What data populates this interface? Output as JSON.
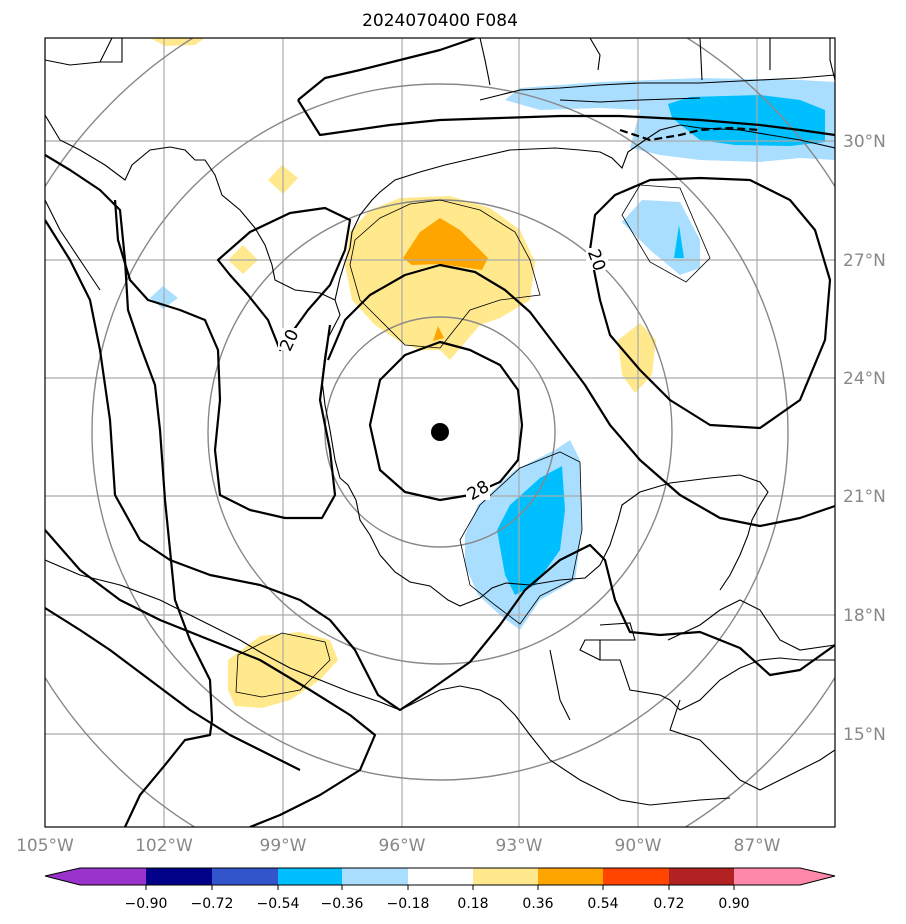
{
  "title": "2024070400 F084",
  "map": {
    "lon_range": [
      -105,
      -85
    ],
    "lat_range": [
      13,
      33
    ],
    "lon_ticks": [
      {
        "value": -105,
        "label": "105°W"
      },
      {
        "value": -102,
        "label": "102°W"
      },
      {
        "value": -99,
        "label": "99°W"
      },
      {
        "value": -96,
        "label": "96°W"
      },
      {
        "value": -93,
        "label": "93°W"
      },
      {
        "value": -90,
        "label": "90°W"
      },
      {
        "value": -87,
        "label": "87°W"
      }
    ],
    "lat_ticks": [
      {
        "value": 15,
        "label": "15°N"
      },
      {
        "value": 18,
        "label": "18°N"
      },
      {
        "value": 21,
        "label": "21°N"
      },
      {
        "value": 24,
        "label": "24°N"
      },
      {
        "value": 27,
        "label": "27°N"
      },
      {
        "value": 30,
        "label": "30°N"
      }
    ],
    "grid": true,
    "gridline_color": "#aaaaaa",
    "storm_center": {
      "lon": -95.0,
      "lat": 22.6
    },
    "contour_labels": [
      "20",
      "20",
      "28"
    ]
  },
  "colorbar": {
    "tick_labels": [
      "−0.90",
      "−0.72",
      "−0.54",
      "−0.36",
      "−0.18",
      "0.18",
      "0.36",
      "0.54",
      "0.72",
      "0.90"
    ],
    "colors": [
      "#9933cc",
      "#000088",
      "#3355cc",
      "#00bfff",
      "#aadeff",
      "#ffffff",
      "#ffe98c",
      "#ffa500",
      "#ff4500",
      "#b22222",
      "#ff88aa"
    ],
    "extend": "both"
  }
}
